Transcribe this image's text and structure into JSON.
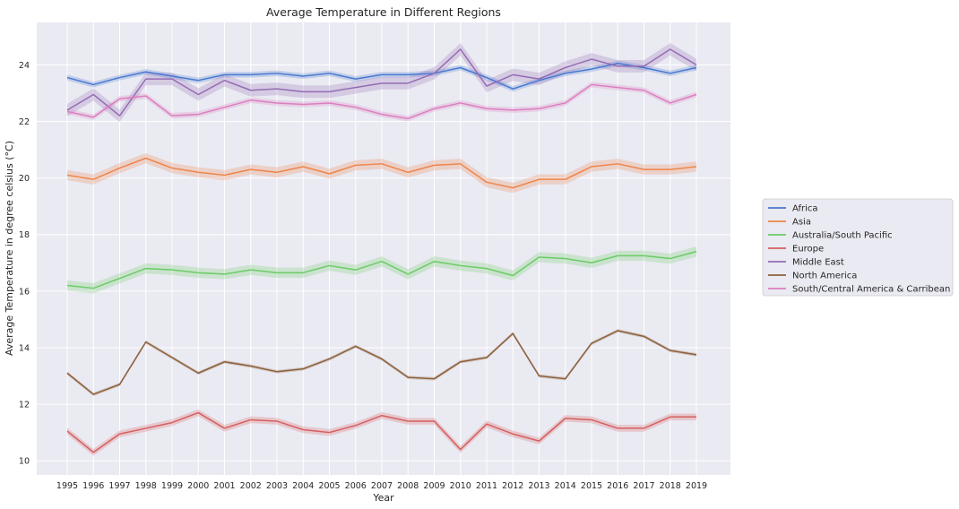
{
  "chart_data": {
    "type": "line",
    "title": "Average Temperature in Different Regions",
    "xlabel": "Year",
    "ylabel": "Average Temperature in degree celsius (°C)",
    "x": [
      "1995",
      "1996",
      "1997",
      "1998",
      "1999",
      "2000",
      "2001",
      "2002",
      "2003",
      "2004",
      "2005",
      "2006",
      "2007",
      "2008",
      "2009",
      "2010",
      "2011",
      "2012",
      "2013",
      "2014",
      "2015",
      "2016",
      "2017",
      "2018",
      "2019"
    ],
    "ylim": [
      9.5,
      25.5
    ],
    "yticks": [
      10,
      12,
      14,
      16,
      18,
      20,
      22,
      24
    ],
    "grid": true,
    "legend_position": "right, outside plot",
    "series": [
      {
        "name": "Africa",
        "color": "#4878d0",
        "band": 0.1,
        "values": [
          23.55,
          23.3,
          23.55,
          23.75,
          23.6,
          23.45,
          23.65,
          23.65,
          23.7,
          23.6,
          23.7,
          23.5,
          23.65,
          23.65,
          23.7,
          23.9,
          23.55,
          23.15,
          23.45,
          23.7,
          23.85,
          24.05,
          23.9,
          23.7,
          23.9
        ]
      },
      {
        "name": "Asia",
        "color": "#ee854a",
        "band": 0.18,
        "values": [
          20.1,
          19.95,
          20.35,
          20.7,
          20.35,
          20.2,
          20.1,
          20.3,
          20.2,
          20.4,
          20.15,
          20.45,
          20.5,
          20.2,
          20.45,
          20.5,
          19.85,
          19.65,
          19.95,
          19.95,
          20.4,
          20.5,
          20.3,
          20.3,
          20.4
        ]
      },
      {
        "name": "Australia/South Pacific",
        "color": "#6acc64",
        "band": 0.18,
        "values": [
          16.2,
          16.1,
          16.45,
          16.8,
          16.75,
          16.65,
          16.6,
          16.75,
          16.65,
          16.65,
          16.9,
          16.75,
          17.05,
          16.6,
          17.05,
          16.9,
          16.8,
          16.55,
          17.2,
          17.15,
          17.0,
          17.25,
          17.25,
          17.15,
          17.4
        ]
      },
      {
        "name": "Europe",
        "color": "#d65f5f",
        "band": 0.12,
        "values": [
          11.05,
          10.3,
          10.95,
          11.15,
          11.35,
          11.7,
          11.15,
          11.45,
          11.4,
          11.1,
          11.0,
          11.25,
          11.6,
          11.4,
          11.4,
          10.4,
          11.3,
          10.95,
          10.7,
          11.5,
          11.45,
          11.15,
          11.15,
          11.55,
          11.55
        ]
      },
      {
        "name": "Middle East",
        "color": "#956cb4",
        "band": 0.22,
        "values": [
          22.4,
          22.95,
          22.2,
          23.5,
          23.5,
          22.95,
          23.45,
          23.1,
          23.15,
          23.05,
          23.05,
          23.2,
          23.35,
          23.35,
          23.7,
          24.55,
          23.25,
          23.65,
          23.5,
          23.9,
          24.2,
          23.95,
          23.95,
          24.55,
          24.0
        ]
      },
      {
        "name": "North America",
        "color": "#8c613c",
        "band": 0.06,
        "values": [
          13.1,
          12.35,
          12.7,
          14.2,
          13.65,
          13.1,
          13.5,
          13.35,
          13.15,
          13.25,
          13.6,
          14.05,
          13.6,
          12.95,
          12.9,
          13.5,
          13.65,
          14.5,
          13.0,
          12.9,
          14.15,
          14.6,
          14.4,
          13.9,
          13.75
        ]
      },
      {
        "name": "South/Central America & Carribean",
        "color": "#dc7ec0",
        "band": 0.1,
        "values": [
          22.35,
          22.15,
          22.8,
          22.9,
          22.2,
          22.25,
          22.5,
          22.75,
          22.65,
          22.6,
          22.65,
          22.5,
          22.25,
          22.1,
          22.45,
          22.65,
          22.45,
          22.4,
          22.45,
          22.65,
          23.3,
          23.2,
          23.1,
          22.65,
          22.95
        ]
      }
    ]
  }
}
